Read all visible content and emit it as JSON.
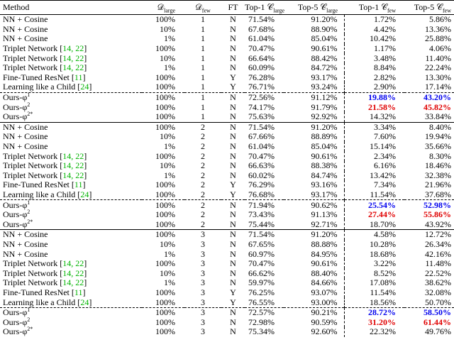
{
  "table": {
    "header": [
      "Method",
      {
        "text": "𝒟",
        "sub": "large"
      },
      {
        "text": "𝒟",
        "sub": "few"
      },
      "FT",
      {
        "text": "Top-1 𝒞",
        "sub": "large"
      },
      {
        "text": "Top-5 𝒞",
        "sub": "large"
      },
      {
        "text": "Top-1 𝒞",
        "sub": "few"
      },
      {
        "text": "Top-5 𝒞",
        "sub": "few"
      }
    ],
    "colors": {
      "blue": "#0000ee",
      "red": "#e00000",
      "citation": "#00b400"
    },
    "groups": [
      {
        "baselines": [
          {
            "cells": [
              "NN + Cosine",
              "100%",
              "1",
              "N",
              "71.54%",
              "91.20%",
              "1.72%",
              "5.86%"
            ]
          },
          {
            "cells": [
              "NN + Cosine",
              "10%",
              "1",
              "N",
              "67.68%",
              "88.90%",
              "4.42%",
              "13.36%"
            ]
          },
          {
            "cells": [
              "NN + Cosine",
              "1%",
              "1",
              "N",
              "61.04%",
              "85.04%",
              "10.42%",
              "25.88%"
            ]
          },
          {
            "cells": [
              "Triplet Network [14, 22]",
              "100%",
              "1",
              "N",
              "70.47%",
              "90.61%",
              "1.17%",
              "4.06%"
            ]
          },
          {
            "cells": [
              "Triplet Network [14, 22]",
              "10%",
              "1",
              "N",
              "66.64%",
              "88.42%",
              "3.48%",
              "11.40%"
            ]
          },
          {
            "cells": [
              "Triplet Network [14, 22]",
              "1%",
              "1",
              "N",
              "60.09%",
              "84.72%",
              "8.84%",
              "22.24%"
            ]
          },
          {
            "cells": [
              "Fine-Tuned ResNet [11]",
              "100%",
              "1",
              "Y",
              "76.28%",
              "93.17%",
              "2.82%",
              "13.30%"
            ]
          },
          {
            "cells": [
              "Learning like a Child [24]",
              "100%",
              "1",
              "Y",
              "76.71%",
              "93.24%",
              "2.90%",
              "17.14%"
            ]
          }
        ],
        "ours": [
          {
            "cells": [
              {
                "text": "Ours-φ",
                "sup": "1"
              },
              "100%",
              "1",
              "N",
              "72.56%",
              "91.12%",
              "19.88%",
              "43.20%"
            ],
            "emphasis": "blue"
          },
          {
            "cells": [
              {
                "text": "Ours-φ",
                "sup": "2"
              },
              "100%",
              "1",
              "N",
              "74.17%",
              "91.79%",
              "21.58%",
              "45.82%"
            ],
            "emphasis": "red"
          },
          {
            "cells": [
              {
                "text": "Ours-φ",
                "sup": "2*"
              },
              "100%",
              "1",
              "N",
              "75.63%",
              "92.92%",
              "14.32%",
              "33.84%"
            ]
          }
        ]
      },
      {
        "baselines": [
          {
            "cells": [
              "NN + Cosine",
              "100%",
              "2",
              "N",
              "71.54%",
              "91.20%",
              "3.34%",
              "8.40%"
            ]
          },
          {
            "cells": [
              "NN + Cosine",
              "10%",
              "2",
              "N",
              "67.66%",
              "88.89%",
              "7.60%",
              "19.94%"
            ]
          },
          {
            "cells": [
              "NN + Cosine",
              "1%",
              "2",
              "N",
              "61.04%",
              "85.04%",
              "15.14%",
              "35.66%"
            ]
          },
          {
            "cells": [
              "Triplet Network [14, 22]",
              "100%",
              "2",
              "N",
              "70.47%",
              "90.61%",
              "2.34%",
              "8.30%"
            ]
          },
          {
            "cells": [
              "Triplet Network [14, 22]",
              "10%",
              "2",
              "N",
              "66.63%",
              "88.38%",
              "6.16%",
              "18.46%"
            ]
          },
          {
            "cells": [
              "Triplet Network [14, 22]",
              "1%",
              "2",
              "N",
              "60.02%",
              "84.74%",
              "13.42%",
              "32.38%"
            ]
          },
          {
            "cells": [
              "Fine-Tuned ResNet [11]",
              "100%",
              "2",
              "Y",
              "76.29%",
              "93.16%",
              "7.34%",
              "21.96%"
            ]
          },
          {
            "cells": [
              "Learning like a Child [24]",
              "100%",
              "2",
              "Y",
              "76.68%",
              "93.17%",
              "11.54%",
              "37.68%"
            ]
          }
        ],
        "ours": [
          {
            "cells": [
              {
                "text": "Ours-φ",
                "sup": "1"
              },
              "100%",
              "2",
              "N",
              "71.94%",
              "90.62%",
              "25.54%",
              "52.98%"
            ],
            "emphasis": "blue"
          },
          {
            "cells": [
              {
                "text": "Ours-φ",
                "sup": "2"
              },
              "100%",
              "2",
              "N",
              "73.43%",
              "91.13%",
              "27.44%",
              "55.86%"
            ],
            "emphasis": "red"
          },
          {
            "cells": [
              {
                "text": "Ours-φ",
                "sup": "2*"
              },
              "100%",
              "2",
              "N",
              "75.44%",
              "92.71%",
              "18.70%",
              "43.92%"
            ]
          }
        ]
      },
      {
        "baselines": [
          {
            "cells": [
              "NN + Cosine",
              "100%",
              "3",
              "N",
              "71.54%",
              "91.20%",
              "4.58%",
              "12.72%"
            ]
          },
          {
            "cells": [
              "NN + Cosine",
              "10%",
              "3",
              "N",
              "67.65%",
              "88.88%",
              "10.28%",
              "26.34%"
            ]
          },
          {
            "cells": [
              "NN + Cosine",
              "1%",
              "3",
              "N",
              "60.97%",
              "84.95%",
              "18.68%",
              "42.16%"
            ]
          },
          {
            "cells": [
              "Triplet Network [14, 22]",
              "100%",
              "3",
              "N",
              "70.47%",
              "90.61%",
              "3.22%",
              "11.48%"
            ]
          },
          {
            "cells": [
              "Triplet Network [14, 22]",
              "10%",
              "3",
              "N",
              "66.62%",
              "88.40%",
              "8.52%",
              "22.52%"
            ]
          },
          {
            "cells": [
              "Triplet Network [14, 22]",
              "1%",
              "3",
              "N",
              "59.97%",
              "84.66%",
              "17.08%",
              "38.62%"
            ]
          },
          {
            "cells": [
              "Fine-Tuned ResNet [11]",
              "100%",
              "3",
              "Y",
              "76.25%",
              "93.07%",
              "11.54%",
              "32.08%"
            ]
          },
          {
            "cells": [
              "Learning like a Child [24]",
              "100%",
              "3",
              "Y",
              "76.55%",
              "93.00%",
              "18.56%",
              "50.70%"
            ]
          }
        ],
        "ours": [
          {
            "cells": [
              {
                "text": "Ours-φ",
                "sup": "1"
              },
              "100%",
              "3",
              "N",
              "72.57%",
              "90.21%",
              "28.72%",
              "58.50%"
            ],
            "emphasis": "blue"
          },
          {
            "cells": [
              {
                "text": "Ours-φ",
                "sup": "2"
              },
              "100%",
              "3",
              "N",
              "72.98%",
              "90.59%",
              "31.20%",
              "61.44%"
            ],
            "emphasis": "red"
          },
          {
            "cells": [
              {
                "text": "Ours-φ",
                "sup": "2*"
              },
              "100%",
              "3",
              "N",
              "75.34%",
              "92.60%",
              "22.32%",
              "49.76%"
            ]
          }
        ]
      }
    ]
  }
}
